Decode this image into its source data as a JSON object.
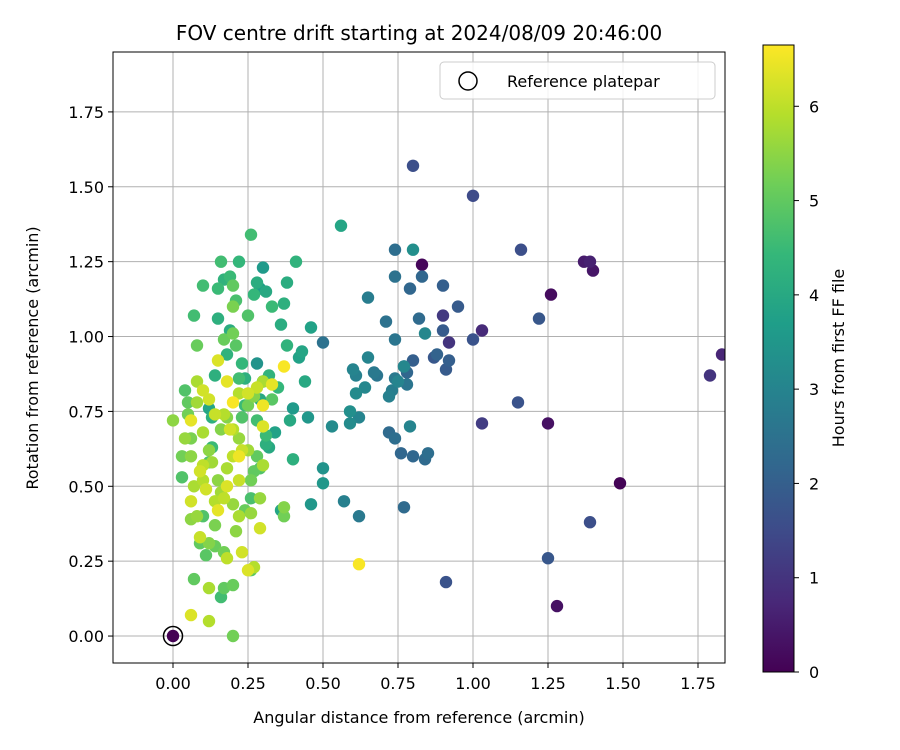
{
  "chart_data": {
    "type": "scatter",
    "title": "FOV centre drift starting at 2024/08/09 20:46:00",
    "xlabel": "Angular distance from reference (arcmin)",
    "ylabel": "Rotation from reference (arcmin)",
    "xlim": [
      -0.2,
      1.84
    ],
    "ylim": [
      -0.09,
      1.95
    ],
    "xticks": [
      "0.00",
      "0.25",
      "0.50",
      "0.75",
      "1.00",
      "1.25",
      "1.50",
      "1.75"
    ],
    "yticks": [
      "0.00",
      "0.25",
      "0.50",
      "0.75",
      "1.00",
      "1.25",
      "1.50",
      "1.75"
    ],
    "grid": true,
    "legend": {
      "placement": "top-right",
      "label": "Reference platepar",
      "marker": "open-circle",
      "color": "#000000"
    },
    "reference_point": {
      "x": 0.0,
      "y": 0.0
    },
    "colorbar": {
      "label": "Hours from first FF file",
      "range": [
        0,
        6.65
      ],
      "ticks": [
        "0",
        "1",
        "2",
        "3",
        "4",
        "5",
        "6"
      ],
      "colormap": "viridis"
    },
    "series": [
      {
        "points": [
          [
            0.0,
            0.0,
            0.0
          ],
          [
            0.83,
            1.24,
            0.1
          ],
          [
            1.49,
            0.51,
            0.05
          ],
          [
            1.28,
            0.1,
            0.3
          ],
          [
            1.26,
            1.14,
            0.2
          ],
          [
            1.4,
            1.22,
            0.4
          ],
          [
            1.37,
            1.25,
            0.5
          ],
          [
            1.39,
            1.25,
            0.6
          ],
          [
            1.83,
            0.94,
            0.7
          ],
          [
            1.25,
            0.71,
            0.3
          ],
          [
            1.79,
            0.87,
            1.0
          ],
          [
            1.03,
            1.02,
            0.8
          ],
          [
            1.03,
            0.71,
            1.2
          ],
          [
            0.9,
            1.07,
            1.1
          ],
          [
            0.92,
            0.98,
            1.0
          ],
          [
            0.8,
            1.57,
            1.6
          ],
          [
            1.0,
            1.47,
            1.5
          ],
          [
            1.16,
            1.29,
            1.6
          ],
          [
            1.15,
            0.78,
            1.7
          ],
          [
            1.22,
            1.06,
            1.8
          ],
          [
            1.25,
            0.26,
            1.8
          ],
          [
            1.39,
            0.38,
            1.6
          ],
          [
            0.91,
            0.18,
            1.7
          ],
          [
            1.0,
            0.99,
            1.7
          ],
          [
            0.95,
            1.1,
            1.9
          ],
          [
            0.87,
            0.93,
            1.8
          ],
          [
            0.9,
            1.02,
            1.9
          ],
          [
            0.91,
            0.89,
            1.9
          ],
          [
            0.92,
            0.92,
            2.0
          ],
          [
            0.9,
            1.17,
            2.0
          ],
          [
            0.88,
            0.94,
            2.1
          ],
          [
            0.83,
            1.2,
            2.2
          ],
          [
            0.82,
            1.06,
            2.3
          ],
          [
            0.79,
            1.16,
            2.2
          ],
          [
            0.8,
            0.92,
            2.0
          ],
          [
            0.77,
            0.9,
            2.1
          ],
          [
            0.78,
            0.88,
            2.2
          ],
          [
            0.84,
            0.59,
            2.3
          ],
          [
            0.85,
            0.61,
            2.4
          ],
          [
            0.8,
            0.6,
            2.2
          ],
          [
            0.76,
            0.61,
            2.2
          ],
          [
            0.77,
            0.43,
            2.3
          ],
          [
            0.74,
            0.66,
            2.4
          ],
          [
            0.72,
            0.68,
            2.3
          ],
          [
            0.78,
            0.84,
            2.6
          ],
          [
            0.74,
            1.2,
            2.5
          ],
          [
            0.74,
            1.29,
            2.4
          ],
          [
            0.71,
            1.05,
            2.5
          ],
          [
            0.74,
            0.99,
            2.6
          ],
          [
            0.74,
            0.86,
            2.7
          ],
          [
            0.73,
            0.82,
            2.8
          ],
          [
            0.72,
            0.8,
            2.9
          ],
          [
            0.75,
            0.85,
            3.0
          ],
          [
            0.77,
            0.9,
            3.1
          ],
          [
            0.79,
            0.7,
            3.0
          ],
          [
            0.84,
            1.01,
            3.1
          ],
          [
            0.8,
            1.29,
            3.3
          ],
          [
            0.68,
            0.87,
            2.6
          ],
          [
            0.67,
            0.88,
            2.7
          ],
          [
            0.65,
            1.13,
            2.8
          ],
          [
            0.65,
            0.93,
            3.0
          ],
          [
            0.64,
            0.83,
            3.1
          ],
          [
            0.62,
            0.73,
            3.0
          ],
          [
            0.59,
            0.71,
            3.2
          ],
          [
            0.59,
            0.75,
            3.3
          ],
          [
            0.61,
            0.87,
            2.9
          ],
          [
            0.6,
            0.89,
            3.0
          ],
          [
            0.61,
            0.81,
            3.2
          ],
          [
            0.62,
            0.4,
            2.7
          ],
          [
            0.57,
            0.45,
            2.9
          ],
          [
            0.5,
            0.98,
            2.5
          ],
          [
            0.53,
            0.7,
            3.2
          ],
          [
            0.5,
            0.56,
            3.4
          ],
          [
            0.5,
            0.51,
            3.5
          ],
          [
            0.56,
            1.37,
            3.9
          ],
          [
            0.46,
            0.44,
            3.5
          ],
          [
            0.4,
            0.76,
            3.6
          ],
          [
            0.45,
            0.73,
            3.5
          ],
          [
            0.46,
            1.03,
            3.8
          ],
          [
            0.42,
            0.93,
            3.8
          ],
          [
            0.43,
            0.95,
            3.9
          ],
          [
            0.44,
            0.85,
            4.0
          ],
          [
            0.38,
            1.18,
            4.1
          ],
          [
            0.39,
            0.72,
            4.0
          ],
          [
            0.4,
            0.59,
            4.2
          ],
          [
            0.41,
            1.25,
            4.3
          ],
          [
            0.37,
            1.11,
            4.2
          ],
          [
            0.36,
            1.04,
            4.1
          ],
          [
            0.38,
            0.97,
            4.3
          ],
          [
            0.35,
            0.83,
            4.4
          ],
          [
            0.34,
            0.68,
            3.8
          ],
          [
            0.32,
            0.63,
            4.0
          ],
          [
            0.31,
            0.64,
            4.2
          ],
          [
            0.36,
            0.42,
            3.9
          ],
          [
            0.29,
            1.16,
            3.7
          ],
          [
            0.28,
            1.18,
            4.1
          ],
          [
            0.3,
            1.23,
            3.6
          ],
          [
            0.31,
            1.15,
            4.0
          ],
          [
            0.27,
            1.14,
            4.4
          ],
          [
            0.26,
            1.34,
            4.6
          ],
          [
            0.28,
            0.91,
            3.4
          ],
          [
            0.3,
            0.85,
            3.6
          ],
          [
            0.29,
            0.79,
            4.0
          ],
          [
            0.32,
            0.87,
            4.3
          ],
          [
            0.33,
            1.1,
            4.5
          ],
          [
            0.33,
            0.79,
            4.9
          ],
          [
            0.28,
            0.72,
            4.6
          ],
          [
            0.31,
            0.67,
            4.5
          ],
          [
            0.29,
            0.56,
            4.8
          ],
          [
            0.27,
            0.55,
            5.0
          ],
          [
            0.26,
            0.46,
            4.7
          ],
          [
            0.28,
            0.6,
            5.0
          ],
          [
            0.26,
            0.52,
            5.2
          ],
          [
            0.25,
            1.07,
            4.8
          ],
          [
            0.23,
            0.91,
            4.4
          ],
          [
            0.24,
            0.86,
            4.2
          ],
          [
            0.24,
            0.77,
            4.5
          ],
          [
            0.23,
            0.73,
            4.8
          ],
          [
            0.22,
            0.86,
            4.6
          ],
          [
            0.21,
            0.97,
            4.9
          ],
          [
            0.2,
            1.01,
            5.2
          ],
          [
            0.2,
            1.1,
            5.3
          ],
          [
            0.22,
            1.25,
            4.4
          ],
          [
            0.19,
            1.2,
            4.5
          ],
          [
            0.21,
            1.12,
            4.7
          ],
          [
            0.2,
            1.17,
            5.0
          ],
          [
            0.16,
            1.25,
            4.6
          ],
          [
            0.17,
            1.19,
            4.3
          ],
          [
            0.15,
            1.16,
            4.5
          ],
          [
            0.1,
            1.17,
            4.6
          ],
          [
            0.15,
            1.06,
            4.2
          ],
          [
            0.19,
            1.02,
            4.1
          ],
          [
            0.18,
            0.94,
            4.3
          ],
          [
            0.17,
            0.99,
            5.1
          ],
          [
            0.14,
            0.87,
            4.2
          ],
          [
            0.12,
            0.76,
            3.9
          ],
          [
            0.13,
            0.73,
            4.2
          ],
          [
            0.13,
            0.63,
            4.5
          ],
          [
            0.12,
            0.58,
            4.8
          ],
          [
            0.07,
            1.07,
            4.6
          ],
          [
            0.08,
            0.97,
            5.1
          ],
          [
            0.04,
            0.82,
            4.8
          ],
          [
            0.05,
            0.78,
            5.0
          ],
          [
            0.05,
            0.74,
            5.2
          ],
          [
            0.06,
            0.66,
            5.3
          ],
          [
            0.03,
            0.6,
            5.2
          ],
          [
            0.03,
            0.53,
            4.8
          ],
          [
            0.0,
            0.72,
            5.5
          ],
          [
            0.04,
            0.66,
            5.6
          ],
          [
            0.06,
            0.6,
            5.5
          ],
          [
            0.07,
            0.5,
            5.8
          ],
          [
            0.06,
            0.39,
            5.5
          ],
          [
            0.08,
            0.4,
            5.6
          ],
          [
            0.1,
            0.4,
            4.8
          ],
          [
            0.09,
            0.31,
            5.0
          ],
          [
            0.12,
            0.31,
            5.4
          ],
          [
            0.11,
            0.27,
            4.9
          ],
          [
            0.14,
            0.3,
            5.1
          ],
          [
            0.17,
            0.28,
            5.2
          ],
          [
            0.16,
            0.13,
            4.6
          ],
          [
            0.17,
            0.16,
            5.0
          ],
          [
            0.2,
            0.17,
            5.1
          ],
          [
            0.07,
            0.19,
            5.0
          ],
          [
            0.12,
            0.16,
            5.8
          ],
          [
            0.2,
            0.0,
            5.2
          ],
          [
            0.06,
            0.07,
            6.3
          ],
          [
            0.12,
            0.05,
            5.9
          ],
          [
            0.18,
            0.26,
            6.0
          ],
          [
            0.21,
            0.35,
            5.5
          ],
          [
            0.23,
            0.28,
            6.2
          ],
          [
            0.25,
            0.22,
            6.3
          ],
          [
            0.26,
            0.22,
            4.9
          ],
          [
            0.24,
            0.42,
            5.1
          ],
          [
            0.22,
            0.4,
            5.8
          ],
          [
            0.2,
            0.44,
            5.6
          ],
          [
            0.17,
            0.46,
            6.0
          ],
          [
            0.16,
            0.48,
            5.7
          ],
          [
            0.15,
            0.42,
            6.4
          ],
          [
            0.14,
            0.45,
            5.9
          ],
          [
            0.11,
            0.49,
            6.2
          ],
          [
            0.1,
            0.52,
            5.9
          ],
          [
            0.09,
            0.55,
            6.2
          ],
          [
            0.1,
            0.57,
            6.0
          ],
          [
            0.13,
            0.58,
            5.7
          ],
          [
            0.15,
            0.52,
            5.5
          ],
          [
            0.18,
            0.56,
            5.8
          ],
          [
            0.2,
            0.6,
            6.0
          ],
          [
            0.23,
            0.62,
            6.1
          ],
          [
            0.25,
            0.62,
            5.7
          ],
          [
            0.22,
            0.52,
            6.1
          ],
          [
            0.18,
            0.5,
            6.3
          ],
          [
            0.22,
            0.66,
            5.6
          ],
          [
            0.2,
            0.69,
            5.9
          ],
          [
            0.16,
            0.69,
            5.4
          ],
          [
            0.17,
            0.74,
            5.9
          ],
          [
            0.14,
            0.74,
            6.1
          ],
          [
            0.12,
            0.79,
            6.2
          ],
          [
            0.1,
            0.82,
            6.2
          ],
          [
            0.08,
            0.78,
            5.7
          ],
          [
            0.06,
            0.72,
            6.4
          ],
          [
            0.08,
            0.85,
            5.8
          ],
          [
            0.15,
            0.92,
            6.3
          ],
          [
            0.18,
            0.85,
            6.4
          ],
          [
            0.22,
            0.81,
            5.9
          ],
          [
            0.25,
            0.81,
            6.2
          ],
          [
            0.28,
            0.83,
            6.1
          ],
          [
            0.3,
            0.85,
            5.8
          ],
          [
            0.27,
            0.8,
            5.4
          ],
          [
            0.25,
            0.77,
            5.2
          ],
          [
            0.3,
            0.77,
            6.5
          ],
          [
            0.3,
            0.7,
            6.3
          ],
          [
            0.33,
            0.84,
            6.4
          ],
          [
            0.37,
            0.9,
            6.6
          ],
          [
            0.3,
            0.57,
            5.8
          ],
          [
            0.29,
            0.46,
            5.6
          ],
          [
            0.29,
            0.36,
            6.2
          ],
          [
            0.26,
            0.41,
            5.6
          ],
          [
            0.37,
            0.43,
            5.4
          ],
          [
            0.37,
            0.4,
            5.2
          ],
          [
            0.22,
            0.6,
            6.5
          ],
          [
            0.2,
            0.78,
            6.6
          ],
          [
            0.19,
            0.69,
            6.2
          ],
          [
            0.18,
            0.73,
            5.4
          ],
          [
            0.62,
            0.24,
            6.6
          ],
          [
            0.1,
            0.68,
            5.8
          ],
          [
            0.12,
            0.62,
            5.5
          ],
          [
            0.14,
            0.37,
            5.3
          ],
          [
            0.27,
            0.23,
            5.9
          ],
          [
            0.09,
            0.33,
            6.1
          ],
          [
            0.06,
            0.45,
            6.2
          ]
        ]
      }
    ]
  }
}
